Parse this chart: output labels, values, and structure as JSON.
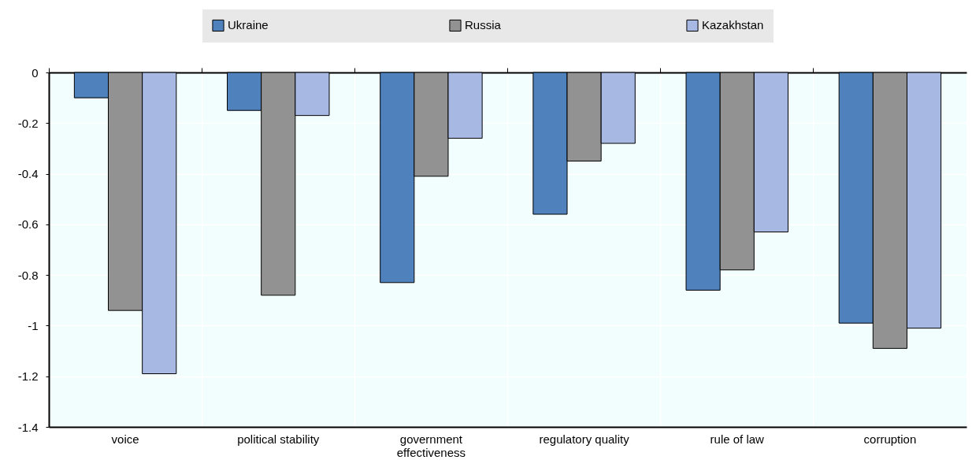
{
  "chart_data": {
    "type": "bar",
    "categories": [
      "voice",
      "political stability",
      "government effectiveness",
      "regulatory quality",
      "rule of law",
      "corruption"
    ],
    "series": [
      {
        "name": "Ukraine",
        "color": "#4f81bd",
        "values": [
          -0.1,
          -0.15,
          -0.83,
          -0.56,
          -0.86,
          -0.99
        ]
      },
      {
        "name": "Russia",
        "color": "#929292",
        "values": [
          -0.94,
          -0.88,
          -0.41,
          -0.35,
          -0.78,
          -1.09
        ]
      },
      {
        "name": "Kazakhstan",
        "color": "#a7b9e3",
        "values": [
          -1.19,
          -0.17,
          -0.26,
          -0.28,
          -0.63,
          -1.01
        ]
      }
    ],
    "ylim": [
      -1.4,
      0
    ],
    "yticks": [
      0,
      -0.2,
      -0.4,
      -0.6,
      -0.8,
      -1,
      -1.2,
      -1.4
    ],
    "grid": true,
    "legend": "top"
  }
}
